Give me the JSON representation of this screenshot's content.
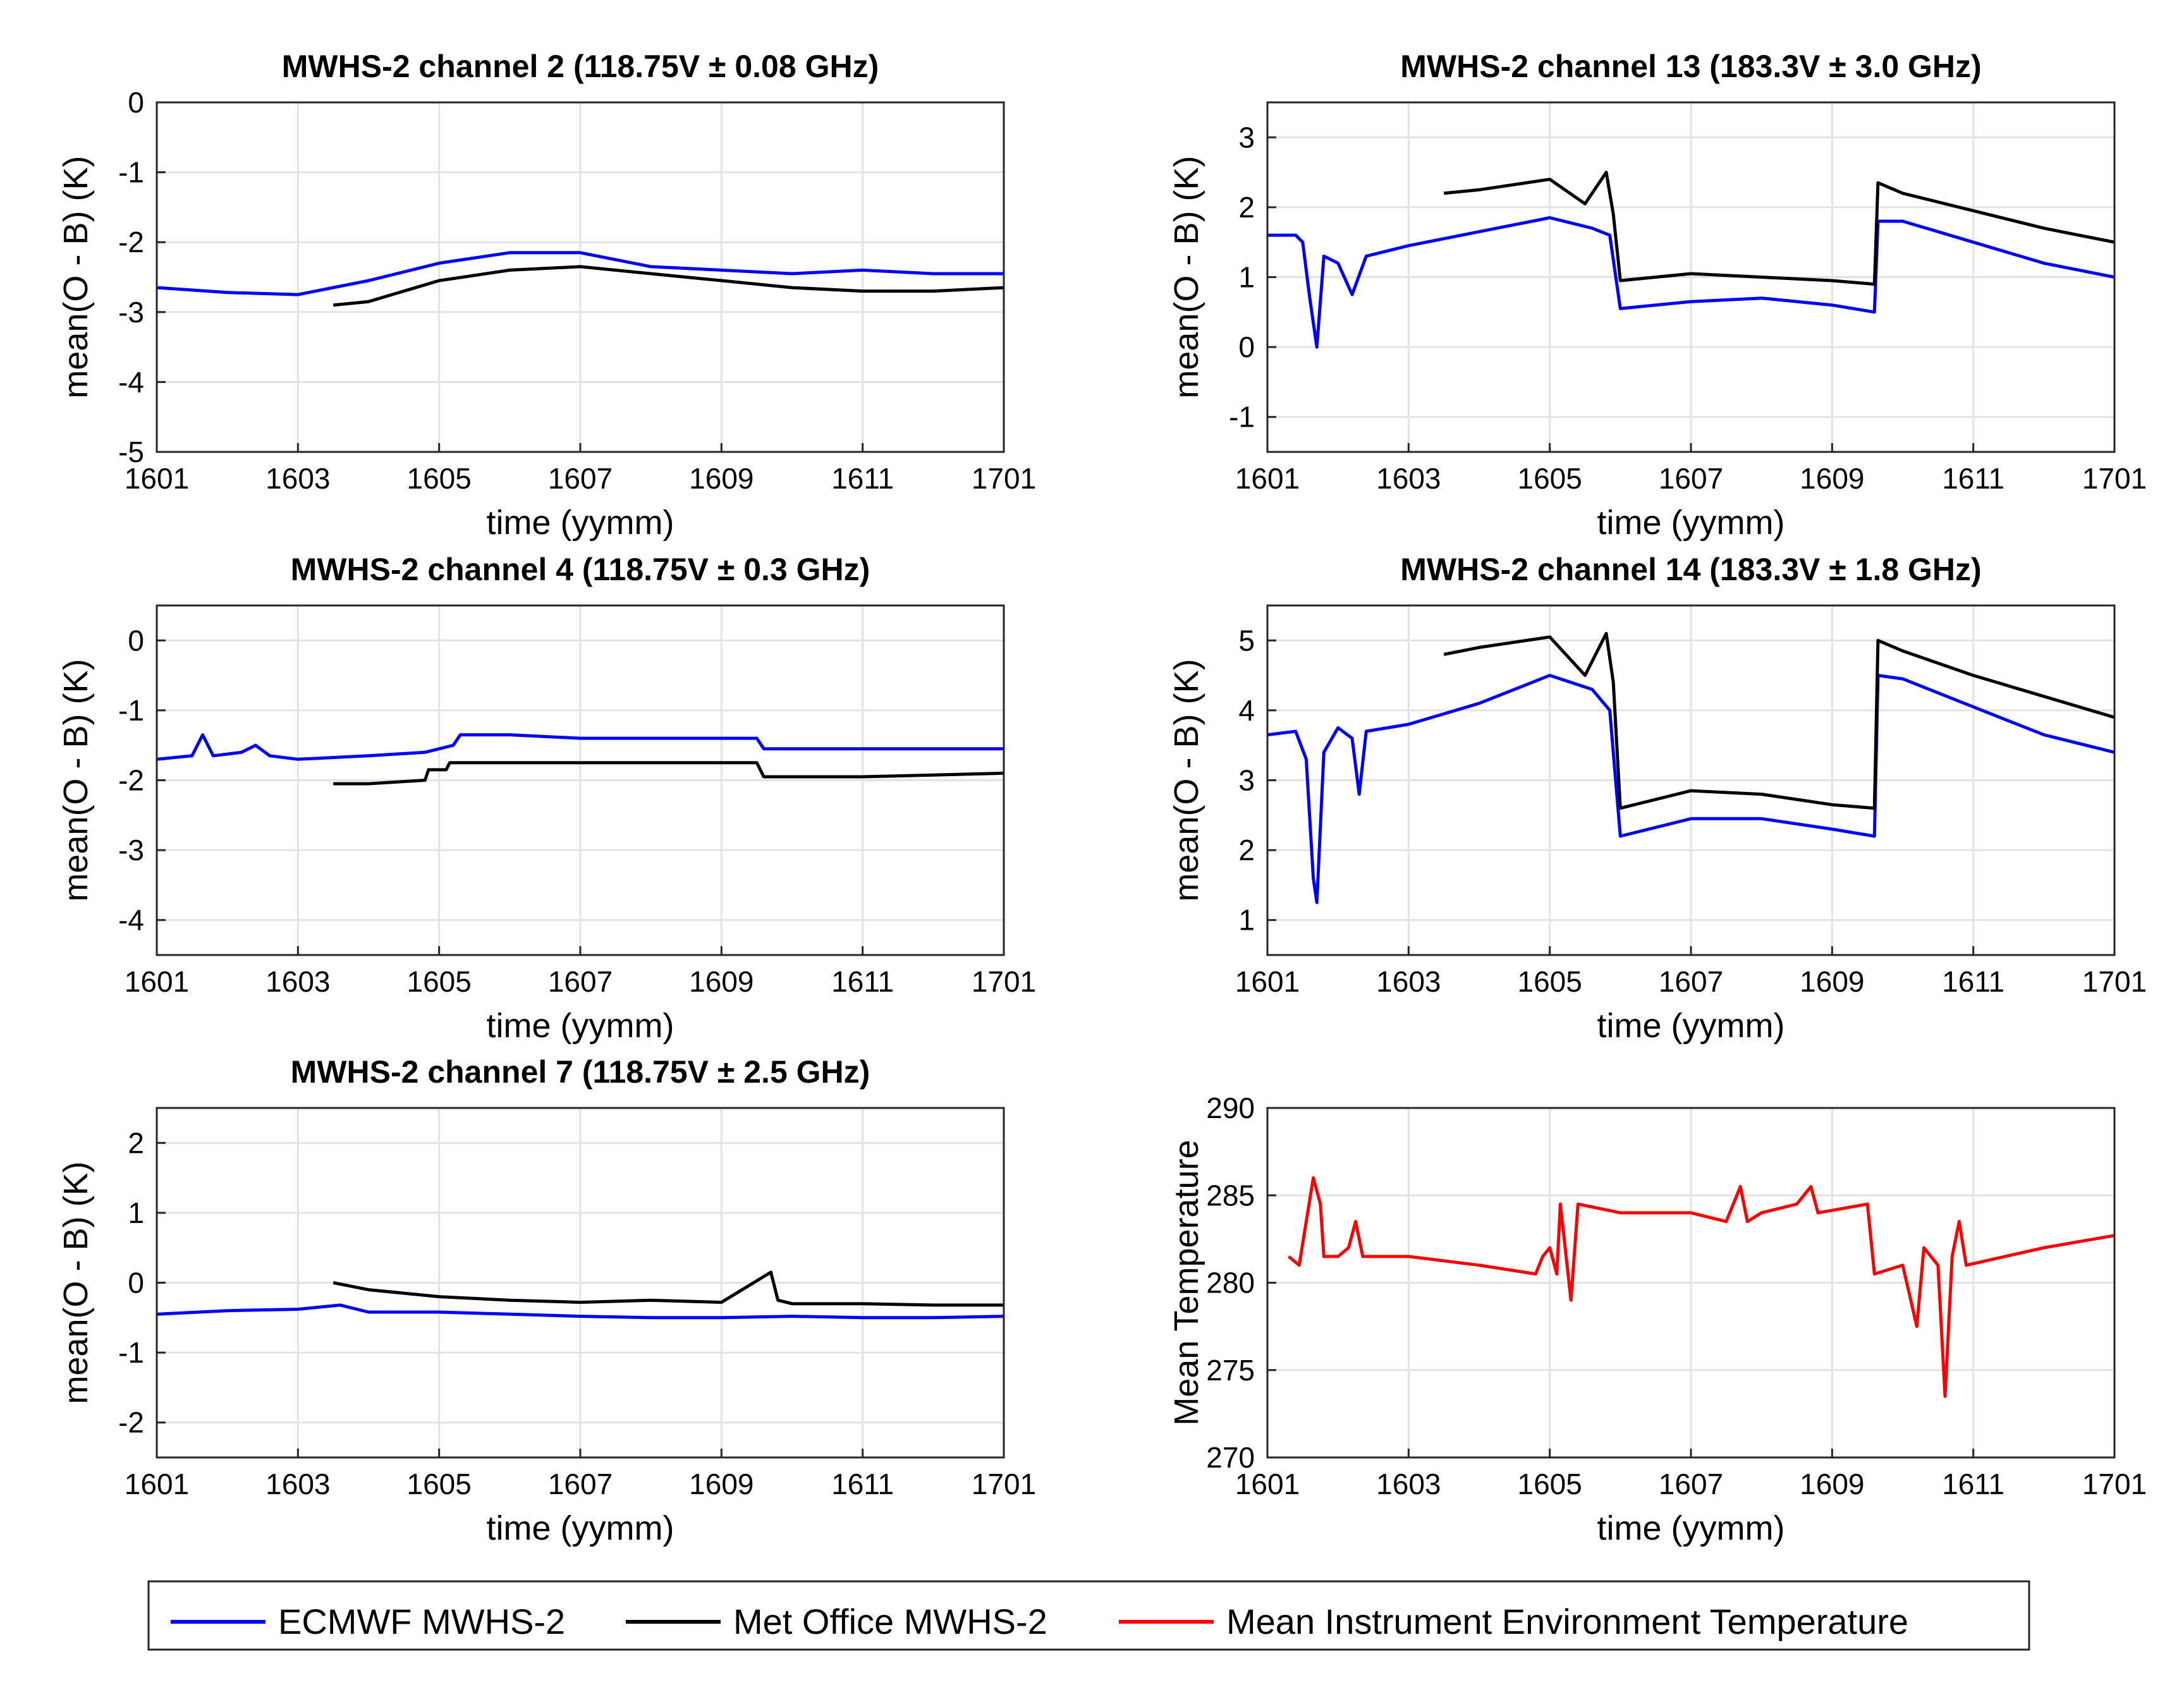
{
  "chart_data": [
    {
      "type": "line",
      "title": "MWHS-2 channel 2 (118.75V ± 0.08 GHz)",
      "xlabel": "time (yymm)",
      "ylabel": "mean(O - B) (K)",
      "grid": true,
      "xlim": [
        0,
        12
      ],
      "ylim": [
        -5,
        0
      ],
      "x_tick_labels": [
        "1601",
        "1603",
        "1605",
        "1607",
        "1609",
        "1611",
        "1701"
      ],
      "y_tick_labels": [
        "0",
        "-1",
        "-2",
        "-3",
        "-4",
        "-5"
      ],
      "series": [
        {
          "name": "ECMWF MWHS-2",
          "color": "#0000ff",
          "points": [
            [
              0,
              -2.65
            ],
            [
              1,
              -2.72
            ],
            [
              2,
              -2.75
            ],
            [
              3,
              -2.55
            ],
            [
              4,
              -2.3
            ],
            [
              5,
              -2.15
            ],
            [
              6,
              -2.15
            ],
            [
              7,
              -2.35
            ],
            [
              8,
              -2.4
            ],
            [
              9,
              -2.45
            ],
            [
              10,
              -2.4
            ],
            [
              11,
              -2.45
            ],
            [
              12,
              -2.45
            ]
          ]
        },
        {
          "name": "Met Office MWHS-2",
          "color": "#000000",
          "points": [
            [
              2.5,
              -2.9
            ],
            [
              3,
              -2.85
            ],
            [
              4,
              -2.55
            ],
            [
              5,
              -2.4
            ],
            [
              6,
              -2.35
            ],
            [
              7,
              -2.45
            ],
            [
              8,
              -2.55
            ],
            [
              9,
              -2.65
            ],
            [
              10,
              -2.7
            ],
            [
              11,
              -2.7
            ],
            [
              12,
              -2.65
            ]
          ]
        }
      ]
    },
    {
      "type": "line",
      "title": "MWHS-2 channel 13 (183.3V ± 3.0 GHz)",
      "xlabel": "time (yymm)",
      "ylabel": "mean(O - B) (K)",
      "grid": true,
      "xlim": [
        0,
        12
      ],
      "ylim": [
        -1.5,
        3.5
      ],
      "x_tick_labels": [
        "1601",
        "1603",
        "1605",
        "1607",
        "1609",
        "1611",
        "1701"
      ],
      "y_tick_labels": [
        "3",
        "2",
        "1",
        "0",
        "-1"
      ],
      "series": [
        {
          "name": "ECMWF MWHS-2",
          "color": "#0000ff",
          "points": [
            [
              0,
              1.6
            ],
            [
              0.4,
              1.6
            ],
            [
              0.5,
              1.5
            ],
            [
              0.6,
              0.7
            ],
            [
              0.7,
              0.0
            ],
            [
              0.8,
              1.3
            ],
            [
              1,
              1.2
            ],
            [
              1.2,
              0.75
            ],
            [
              1.4,
              1.3
            ],
            [
              2,
              1.45
            ],
            [
              3,
              1.65
            ],
            [
              4,
              1.85
            ],
            [
              4.6,
              1.7
            ],
            [
              4.85,
              1.6
            ],
            [
              5,
              0.55
            ],
            [
              6,
              0.65
            ],
            [
              7,
              0.7
            ],
            [
              8,
              0.6
            ],
            [
              8.6,
              0.5
            ],
            [
              8.65,
              1.8
            ],
            [
              9,
              1.8
            ],
            [
              10,
              1.5
            ],
            [
              11,
              1.2
            ],
            [
              12,
              1.0
            ]
          ]
        },
        {
          "name": "Met Office MWHS-2",
          "color": "#000000",
          "points": [
            [
              2.5,
              2.2
            ],
            [
              3,
              2.25
            ],
            [
              4,
              2.4
            ],
            [
              4.5,
              2.05
            ],
            [
              4.8,
              2.5
            ],
            [
              4.9,
              1.9
            ],
            [
              5,
              0.95
            ],
            [
              6,
              1.05
            ],
            [
              7,
              1.0
            ],
            [
              8,
              0.95
            ],
            [
              8.6,
              0.9
            ],
            [
              8.65,
              2.35
            ],
            [
              9,
              2.2
            ],
            [
              10,
              1.95
            ],
            [
              11,
              1.7
            ],
            [
              12,
              1.5
            ]
          ]
        }
      ]
    },
    {
      "type": "line",
      "title": "MWHS-2 channel 4 (118.75V ± 0.3 GHz)",
      "xlabel": "time (yymm)",
      "ylabel": "mean(O - B) (K)",
      "grid": true,
      "xlim": [
        0,
        12
      ],
      "ylim": [
        -4.5,
        0.5
      ],
      "x_tick_labels": [
        "1601",
        "1603",
        "1605",
        "1607",
        "1609",
        "1611",
        "1701"
      ],
      "y_tick_labels": [
        "0",
        "-1",
        "-2",
        "-3",
        "-4"
      ],
      "series": [
        {
          "name": "ECMWF MWHS-2",
          "color": "#0000ff",
          "points": [
            [
              0,
              -1.7
            ],
            [
              0.5,
              -1.65
            ],
            [
              0.65,
              -1.35
            ],
            [
              0.8,
              -1.65
            ],
            [
              1.2,
              -1.6
            ],
            [
              1.4,
              -1.5
            ],
            [
              1.6,
              -1.65
            ],
            [
              2,
              -1.7
            ],
            [
              3,
              -1.65
            ],
            [
              3.8,
              -1.6
            ],
            [
              4.2,
              -1.5
            ],
            [
              4.3,
              -1.35
            ],
            [
              5,
              -1.35
            ],
            [
              6,
              -1.4
            ],
            [
              7,
              -1.4
            ],
            [
              8.5,
              -1.4
            ],
            [
              8.6,
              -1.55
            ],
            [
              10,
              -1.55
            ],
            [
              12,
              -1.55
            ]
          ]
        },
        {
          "name": "Met Office MWHS-2",
          "color": "#000000",
          "points": [
            [
              2.5,
              -2.05
            ],
            [
              3,
              -2.05
            ],
            [
              3.8,
              -2.0
            ],
            [
              3.85,
              -1.85
            ],
            [
              4.1,
              -1.85
            ],
            [
              4.15,
              -1.75
            ],
            [
              5,
              -1.75
            ],
            [
              6,
              -1.75
            ],
            [
              7,
              -1.75
            ],
            [
              8.5,
              -1.75
            ],
            [
              8.6,
              -1.95
            ],
            [
              10,
              -1.95
            ],
            [
              12,
              -1.9
            ]
          ]
        }
      ]
    },
    {
      "type": "line",
      "title": "MWHS-2 channel 14 (183.3V ± 1.8 GHz)",
      "xlabel": "time (yymm)",
      "ylabel": "mean(O - B) (K)",
      "grid": true,
      "xlim": [
        0,
        12
      ],
      "ylim": [
        0.5,
        5.5
      ],
      "x_tick_labels": [
        "1601",
        "1603",
        "1605",
        "1607",
        "1609",
        "1611",
        "1701"
      ],
      "y_tick_labels": [
        "5",
        "4",
        "3",
        "2",
        "1"
      ],
      "series": [
        {
          "name": "ECMWF MWHS-2",
          "color": "#0000ff",
          "points": [
            [
              0,
              3.65
            ],
            [
              0.4,
              3.7
            ],
            [
              0.55,
              3.3
            ],
            [
              0.65,
              1.6
            ],
            [
              0.7,
              1.25
            ],
            [
              0.8,
              3.4
            ],
            [
              1,
              3.75
            ],
            [
              1.2,
              3.6
            ],
            [
              1.3,
              2.8
            ],
            [
              1.4,
              3.7
            ],
            [
              2,
              3.8
            ],
            [
              3,
              4.1
            ],
            [
              4,
              4.5
            ],
            [
              4.6,
              4.3
            ],
            [
              4.85,
              4.0
            ],
            [
              5,
              2.2
            ],
            [
              6,
              2.45
            ],
            [
              7,
              2.45
            ],
            [
              8,
              2.3
            ],
            [
              8.6,
              2.2
            ],
            [
              8.65,
              4.5
            ],
            [
              9,
              4.45
            ],
            [
              10,
              4.05
            ],
            [
              11,
              3.65
            ],
            [
              12,
              3.4
            ]
          ]
        },
        {
          "name": "Met Office MWHS-2",
          "color": "#000000",
          "points": [
            [
              2.5,
              4.8
            ],
            [
              3,
              4.9
            ],
            [
              4,
              5.05
            ],
            [
              4.5,
              4.5
            ],
            [
              4.8,
              5.1
            ],
            [
              4.9,
              4.4
            ],
            [
              5,
              2.6
            ],
            [
              6,
              2.85
            ],
            [
              7,
              2.8
            ],
            [
              8,
              2.65
            ],
            [
              8.6,
              2.6
            ],
            [
              8.65,
              5.0
            ],
            [
              9,
              4.85
            ],
            [
              10,
              4.5
            ],
            [
              11,
              4.2
            ],
            [
              12,
              3.9
            ]
          ]
        }
      ]
    },
    {
      "type": "line",
      "title": "MWHS-2 channel 7 (118.75V ± 2.5 GHz)",
      "xlabel": "time (yymm)",
      "ylabel": "mean(O - B) (K)",
      "grid": true,
      "xlim": [
        0,
        12
      ],
      "ylim": [
        -2.5,
        2.5
      ],
      "x_tick_labels": [
        "1601",
        "1603",
        "1605",
        "1607",
        "1609",
        "1611",
        "1701"
      ],
      "y_tick_labels": [
        "2",
        "1",
        "0",
        "-1",
        "-2"
      ],
      "series": [
        {
          "name": "ECMWF MWHS-2",
          "color": "#0000ff",
          "points": [
            [
              0,
              -0.45
            ],
            [
              1,
              -0.4
            ],
            [
              2,
              -0.38
            ],
            [
              2.6,
              -0.32
            ],
            [
              3,
              -0.42
            ],
            [
              4,
              -0.42
            ],
            [
              5,
              -0.45
            ],
            [
              6,
              -0.48
            ],
            [
              7,
              -0.5
            ],
            [
              8,
              -0.5
            ],
            [
              9,
              -0.48
            ],
            [
              10,
              -0.5
            ],
            [
              11,
              -0.5
            ],
            [
              12,
              -0.48
            ]
          ]
        },
        {
          "name": "Met Office MWHS-2",
          "color": "#000000",
          "points": [
            [
              2.5,
              0.0
            ],
            [
              3,
              -0.1
            ],
            [
              4,
              -0.2
            ],
            [
              5,
              -0.25
            ],
            [
              6,
              -0.28
            ],
            [
              7,
              -0.25
            ],
            [
              8,
              -0.28
            ],
            [
              8.7,
              0.15
            ],
            [
              8.8,
              -0.25
            ],
            [
              9,
              -0.3
            ],
            [
              10,
              -0.3
            ],
            [
              11,
              -0.32
            ],
            [
              12,
              -0.32
            ]
          ]
        }
      ]
    },
    {
      "type": "line",
      "title": "",
      "xlabel": "time (yymm)",
      "ylabel": "Mean Temperature",
      "grid": true,
      "xlim": [
        0,
        12
      ],
      "ylim": [
        270,
        290
      ],
      "x_tick_labels": [
        "1601",
        "1603",
        "1605",
        "1607",
        "1609",
        "1611",
        "1701"
      ],
      "y_tick_labels": [
        "290",
        "285",
        "280",
        "275",
        "270"
      ],
      "series": [
        {
          "name": "Mean Instrument Environment Temperature",
          "color": "#ff0000",
          "points": [
            [
              0.3,
              281.5
            ],
            [
              0.45,
              281.0
            ],
            [
              0.55,
              283.5
            ],
            [
              0.65,
              286.0
            ],
            [
              0.75,
              284.5
            ],
            [
              0.8,
              281.5
            ],
            [
              1,
              281.5
            ],
            [
              1.15,
              282.0
            ],
            [
              1.25,
              283.5
            ],
            [
              1.35,
              281.5
            ],
            [
              2,
              281.5
            ],
            [
              3,
              281.0
            ],
            [
              3.8,
              280.5
            ],
            [
              3.9,
              281.5
            ],
            [
              4,
              282.0
            ],
            [
              4.1,
              280.5
            ],
            [
              4.15,
              284.5
            ],
            [
              4.3,
              279.0
            ],
            [
              4.4,
              284.5
            ],
            [
              5,
              284.0
            ],
            [
              6,
              284.0
            ],
            [
              6.5,
              283.5
            ],
            [
              6.7,
              285.5
            ],
            [
              6.8,
              283.5
            ],
            [
              7,
              284.0
            ],
            [
              7.5,
              284.5
            ],
            [
              7.7,
              285.5
            ],
            [
              7.8,
              284.0
            ],
            [
              8.5,
              284.5
            ],
            [
              8.6,
              280.5
            ],
            [
              9,
              281.0
            ],
            [
              9.2,
              277.5
            ],
            [
              9.3,
              282.0
            ],
            [
              9.5,
              281.0
            ],
            [
              9.6,
              273.5
            ],
            [
              9.7,
              281.5
            ],
            [
              9.8,
              283.5
            ],
            [
              9.9,
              281.0
            ],
            [
              11,
              282.0
            ],
            [
              12,
              282.7
            ]
          ]
        }
      ]
    }
  ],
  "legend": {
    "items": [
      {
        "label": "ECMWF MWHS-2",
        "color": "#0000ff"
      },
      {
        "label": "Met Office MWHS-2",
        "color": "#000000"
      },
      {
        "label": "Mean Instrument Environment Temperature",
        "color": "#ff0000"
      }
    ]
  }
}
